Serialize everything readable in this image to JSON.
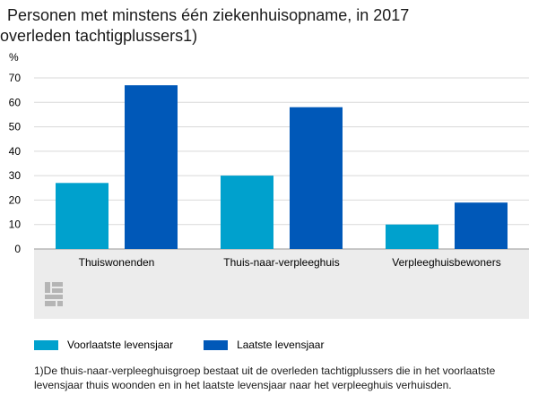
{
  "chart_data": {
    "type": "bar",
    "title_line1": "Personen met minstens één ziekenhuisopname, in 2017",
    "title_line2": "overleden tachtigplussers1)",
    "ylabel": "%",
    "ylim": [
      0,
      70
    ],
    "yticks": [
      0,
      10,
      20,
      30,
      40,
      50,
      60,
      70
    ],
    "categories": [
      "Thuiswonenden",
      "Thuis-naar-verpleeghuis",
      "Verpleeghuisbewoners"
    ],
    "series": [
      {
        "name": "Voorlaatste levensjaar",
        "color": "#00a1cd",
        "values": [
          27,
          30,
          10
        ]
      },
      {
        "name": "Laatste levensjaar",
        "color": "#0058b8",
        "values": [
          67,
          58,
          19
        ]
      }
    ],
    "grid": true,
    "legend_position": "bottom-left",
    "footnote": "1)De thuis-naar-verpleeghuisgroep bestaat uit de overleden tachtigplussers die in het voorlaatste levensjaar thuis woonden en in het laatste levensjaar naar het verpleeghuis verhuisden.",
    "logo": "cbs-logo-icon"
  }
}
